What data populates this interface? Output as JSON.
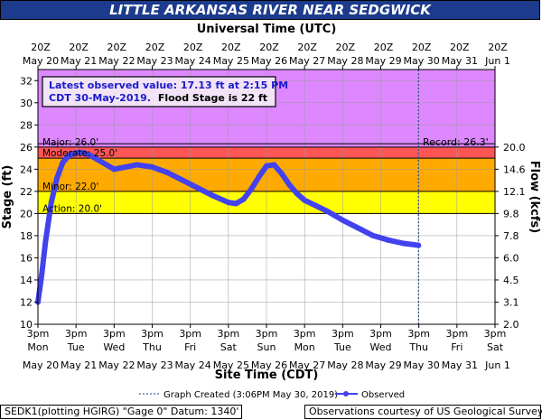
{
  "title": "LITTLE ARKANSAS RIVER NEAR SEDGWICK",
  "top_axis_title": "Universal Time (UTC)",
  "bottom_axis_title": "Site Time (CDT)",
  "y_left_label": "Stage (ft)",
  "y_right_label": "Flow (kcfs)",
  "info_box": {
    "line1": "Latest observed value: 17.13 ft at 2:15 PM",
    "line2a": "CDT 30-May-2019.",
    "line2b": "Flood Stage is 22 ft"
  },
  "record_label": "Record: 26.3'",
  "legend": {
    "created": "Graph Created (3:06PM May 30, 2019)",
    "observed": "Observed"
  },
  "footer": {
    "left": "SEDK1(plotting HGIRG) \"Gage 0\" Datum: 1340'",
    "right": "Observations courtesy of US Geological Survey"
  },
  "colors": {
    "major": "#dd88ff",
    "moderate": "#ff5555",
    "minor": "#ffaa00",
    "action": "#ffff00",
    "line": "#4242ee",
    "title_bg": "#1c3b8c",
    "stage_label": "#0000cc"
  },
  "top_ticks": [
    {
      "t": "20Z",
      "d": "May 20"
    },
    {
      "t": "20Z",
      "d": "May 21"
    },
    {
      "t": "20Z",
      "d": "May 22"
    },
    {
      "t": "20Z",
      "d": "May 23"
    },
    {
      "t": "20Z",
      "d": "May 24"
    },
    {
      "t": "20Z",
      "d": "May 25"
    },
    {
      "t": "20Z",
      "d": "May 26"
    },
    {
      "t": "20Z",
      "d": "May 27"
    },
    {
      "t": "20Z",
      "d": "May 28"
    },
    {
      "t": "20Z",
      "d": "May 29"
    },
    {
      "t": "20Z",
      "d": "May 30"
    },
    {
      "t": "20Z",
      "d": "May 31"
    },
    {
      "t": "20Z",
      "d": "Jun 1"
    }
  ],
  "bottom_ticks": [
    {
      "t": "3pm",
      "w": "Mon",
      "d": "May 20"
    },
    {
      "t": "3pm",
      "w": "Tue",
      "d": "May 21"
    },
    {
      "t": "3pm",
      "w": "Wed",
      "d": "May 22"
    },
    {
      "t": "3pm",
      "w": "Thu",
      "d": "May 23"
    },
    {
      "t": "3pm",
      "w": "Fri",
      "d": "May 24"
    },
    {
      "t": "3pm",
      "w": "Sat",
      "d": "May 25"
    },
    {
      "t": "3pm",
      "w": "Sun",
      "d": "May 26"
    },
    {
      "t": "3pm",
      "w": "Mon",
      "d": "May 27"
    },
    {
      "t": "3pm",
      "w": "Tue",
      "d": "May 28"
    },
    {
      "t": "3pm",
      "w": "Wed",
      "d": "May 29"
    },
    {
      "t": "3pm",
      "w": "Thu",
      "d": "May 30"
    },
    {
      "t": "3pm",
      "w": "Fri",
      "d": "May 31"
    },
    {
      "t": "3pm",
      "w": "Sat",
      "d": "Jun 1"
    }
  ],
  "chart_data": {
    "type": "line",
    "x_unit": "days after 3pm CDT May 20, 2019",
    "ylim": [
      10,
      33
    ],
    "yticks": [
      10,
      12,
      14,
      16,
      18,
      20,
      22,
      24,
      26,
      28,
      30,
      32
    ],
    "right_ticks": [
      {
        "stage": 10,
        "label": "2.0"
      },
      {
        "stage": 12,
        "label": "3.1"
      },
      {
        "stage": 14,
        "label": "4.5"
      },
      {
        "stage": 16,
        "label": "6.0"
      },
      {
        "stage": 18,
        "label": "7.8"
      },
      {
        "stage": 20,
        "label": "9.8"
      },
      {
        "stage": 22,
        "label": "12.1"
      },
      {
        "stage": 24,
        "label": "14.6"
      },
      {
        "stage": 26,
        "label": "20.0"
      }
    ],
    "thresholds": [
      {
        "name": "Major",
        "label": "Major: 26.0'",
        "value": 26
      },
      {
        "name": "Moderate",
        "label": "Moderate: 25.0'",
        "value": 25
      },
      {
        "name": "Minor",
        "label": "Minor: 22.0'",
        "value": 22
      },
      {
        "name": "Action",
        "label": "Action: 20.0'",
        "value": 20
      }
    ],
    "record": 26.3,
    "graph_created_x": 9.99,
    "series": [
      {
        "name": "Observed",
        "x": [
          0.0,
          0.1,
          0.2,
          0.35,
          0.5,
          0.65,
          0.8,
          1.0,
          1.2,
          1.4,
          1.6,
          1.8,
          2.0,
          2.3,
          2.6,
          3.0,
          3.4,
          3.8,
          4.2,
          4.6,
          5.0,
          5.2,
          5.4,
          5.6,
          5.8,
          6.0,
          6.2,
          6.4,
          6.6,
          6.8,
          7.0,
          7.3,
          7.6,
          8.0,
          8.4,
          8.8,
          9.2,
          9.6,
          9.99
        ],
        "y": [
          12.0,
          14.5,
          17.5,
          21.0,
          23.2,
          24.6,
          25.2,
          25.5,
          25.5,
          25.2,
          24.8,
          24.4,
          24.0,
          24.2,
          24.4,
          24.2,
          23.7,
          23.0,
          22.3,
          21.6,
          21.0,
          20.9,
          21.3,
          22.2,
          23.3,
          24.3,
          24.4,
          23.6,
          22.6,
          21.8,
          21.2,
          20.7,
          20.2,
          19.4,
          18.7,
          18.0,
          17.6,
          17.3,
          17.13
        ]
      }
    ]
  }
}
